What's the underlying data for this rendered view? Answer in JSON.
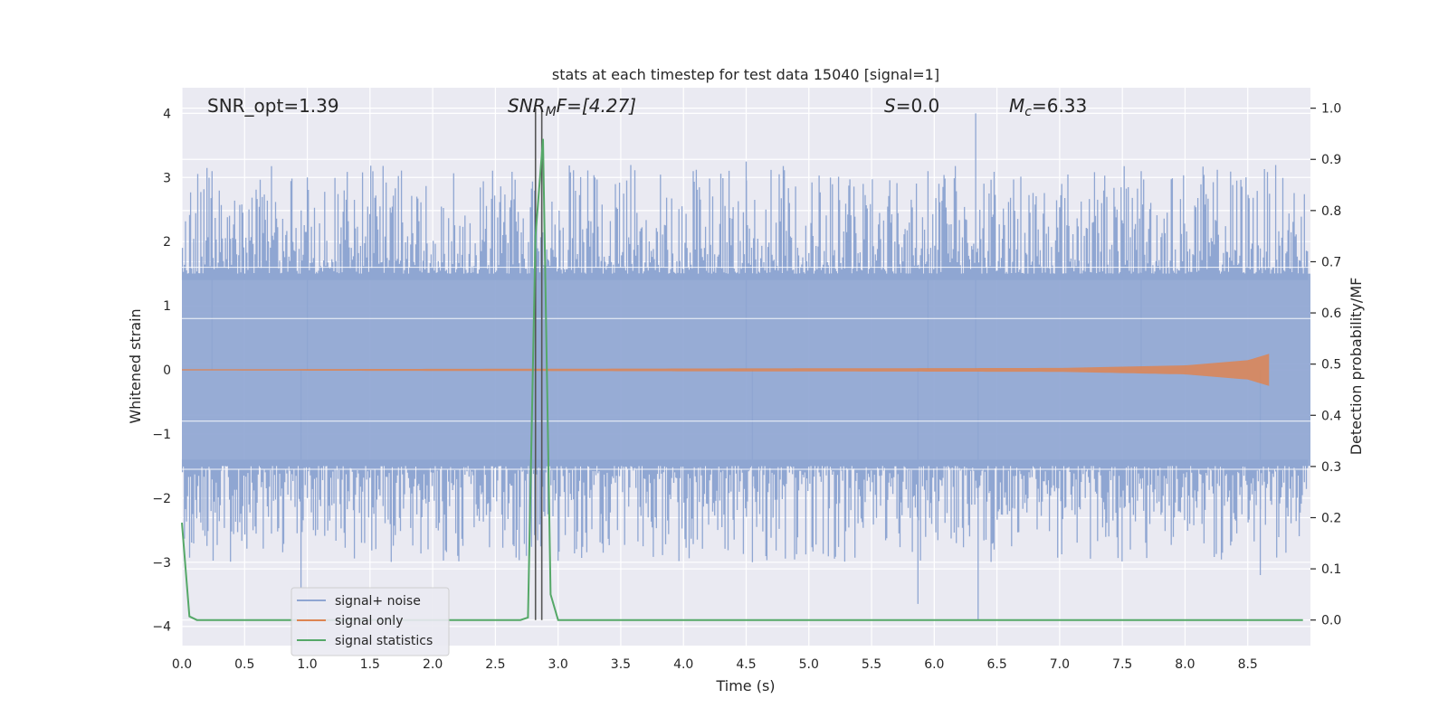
{
  "chart_data": {
    "type": "line",
    "title": "stats at each timestep for test data 15040 [signal=1]",
    "xlabel": "Time (s)",
    "ylabel": "Whitened strain",
    "ylabel_right": "Detection probability/MF",
    "xlim": [
      0.0,
      9.0
    ],
    "ylim": [
      -4.3,
      4.4
    ],
    "ylim_right": [
      -0.05,
      1.04
    ],
    "x_ticks": [
      0.0,
      0.5,
      1.0,
      1.5,
      2.0,
      2.5,
      3.0,
      3.5,
      4.0,
      4.5,
      5.0,
      5.5,
      6.0,
      6.5,
      7.0,
      7.5,
      8.0,
      8.5
    ],
    "x_tick_labels": [
      "0.0",
      "0.5",
      "1.0",
      "1.5",
      "2.0",
      "2.5",
      "3.0",
      "3.5",
      "4.0",
      "4.5",
      "5.0",
      "5.5",
      "6.0",
      "6.5",
      "7.0",
      "7.5",
      "8.0",
      "8.5"
    ],
    "y_ticks": [
      -4,
      -3,
      -2,
      -1,
      0,
      1,
      2,
      3,
      4
    ],
    "y_tick_labels": [
      "−4",
      "−3",
      "−2",
      "−1",
      "0",
      "1",
      "2",
      "3",
      "4"
    ],
    "y_ticks_right": [
      0.0,
      0.1,
      0.2,
      0.3,
      0.4,
      0.5,
      0.6,
      0.7,
      0.8,
      0.9,
      1.0
    ],
    "y_tick_labels_right": [
      "0.0",
      "0.1",
      "0.2",
      "0.3",
      "0.4",
      "0.5",
      "0.6",
      "0.7",
      "0.8",
      "0.9",
      "1.0"
    ],
    "grid": true,
    "legend_position": "lower-left",
    "annotations": [
      {
        "text": "SNR_opt=1.39",
        "x": 0.2,
        "y": 4.1
      },
      {
        "text": "SNR_MF=[4.27]",
        "x": 2.6,
        "y": 4.1
      },
      {
        "text": "S=0.0",
        "x": 5.6,
        "y": 4.1
      },
      {
        "text": "M_c=6.33",
        "x": 6.6,
        "y": 4.1
      }
    ],
    "vertical_lines": [
      2.82,
      2.87
    ],
    "series": [
      {
        "name": "signal+ noise",
        "axis": "left",
        "color": "#8fa6d2",
        "description_peaks": {
          "x": [
            0.0,
            9.0
          ],
          "typical_abs": 1.6,
          "max": 4.0,
          "min": -3.9
        }
      },
      {
        "name": "signal only",
        "axis": "left",
        "color": "#dd8452",
        "x_end": 8.67,
        "amplitude_envelope": [
          [
            0.0,
            0.01
          ],
          [
            7.0,
            0.03
          ],
          [
            8.0,
            0.07
          ],
          [
            8.5,
            0.15
          ],
          [
            8.67,
            0.25
          ]
        ]
      },
      {
        "name": "signal statistics",
        "axis": "right",
        "color": "#55a868",
        "x": [
          0.0,
          0.06,
          0.12,
          2.7,
          2.76,
          2.82,
          2.88,
          2.94,
          3.0,
          8.94
        ],
        "y": [
          0.19,
          0.007,
          0.0,
          0.0,
          0.005,
          0.75,
          0.94,
          0.05,
          0.0,
          0.0
        ]
      }
    ]
  },
  "annotations_display": {
    "snr_opt": "SNR_opt=1.39",
    "snr_mf_base": "SNR",
    "snr_mf_sub": "M",
    "snr_mf_rest": "F=[4.27]",
    "s_base": "S",
    "s_rest": "=0.0",
    "mc_base": "M",
    "mc_sub": "c",
    "mc_rest": "=6.33"
  },
  "colors": {
    "plot_bg": "#eaeaf2",
    "grid": "#ffffff",
    "noise": "#8fa6d2",
    "signal": "#dd8452",
    "stats": "#55a868",
    "vline": "#555555"
  }
}
